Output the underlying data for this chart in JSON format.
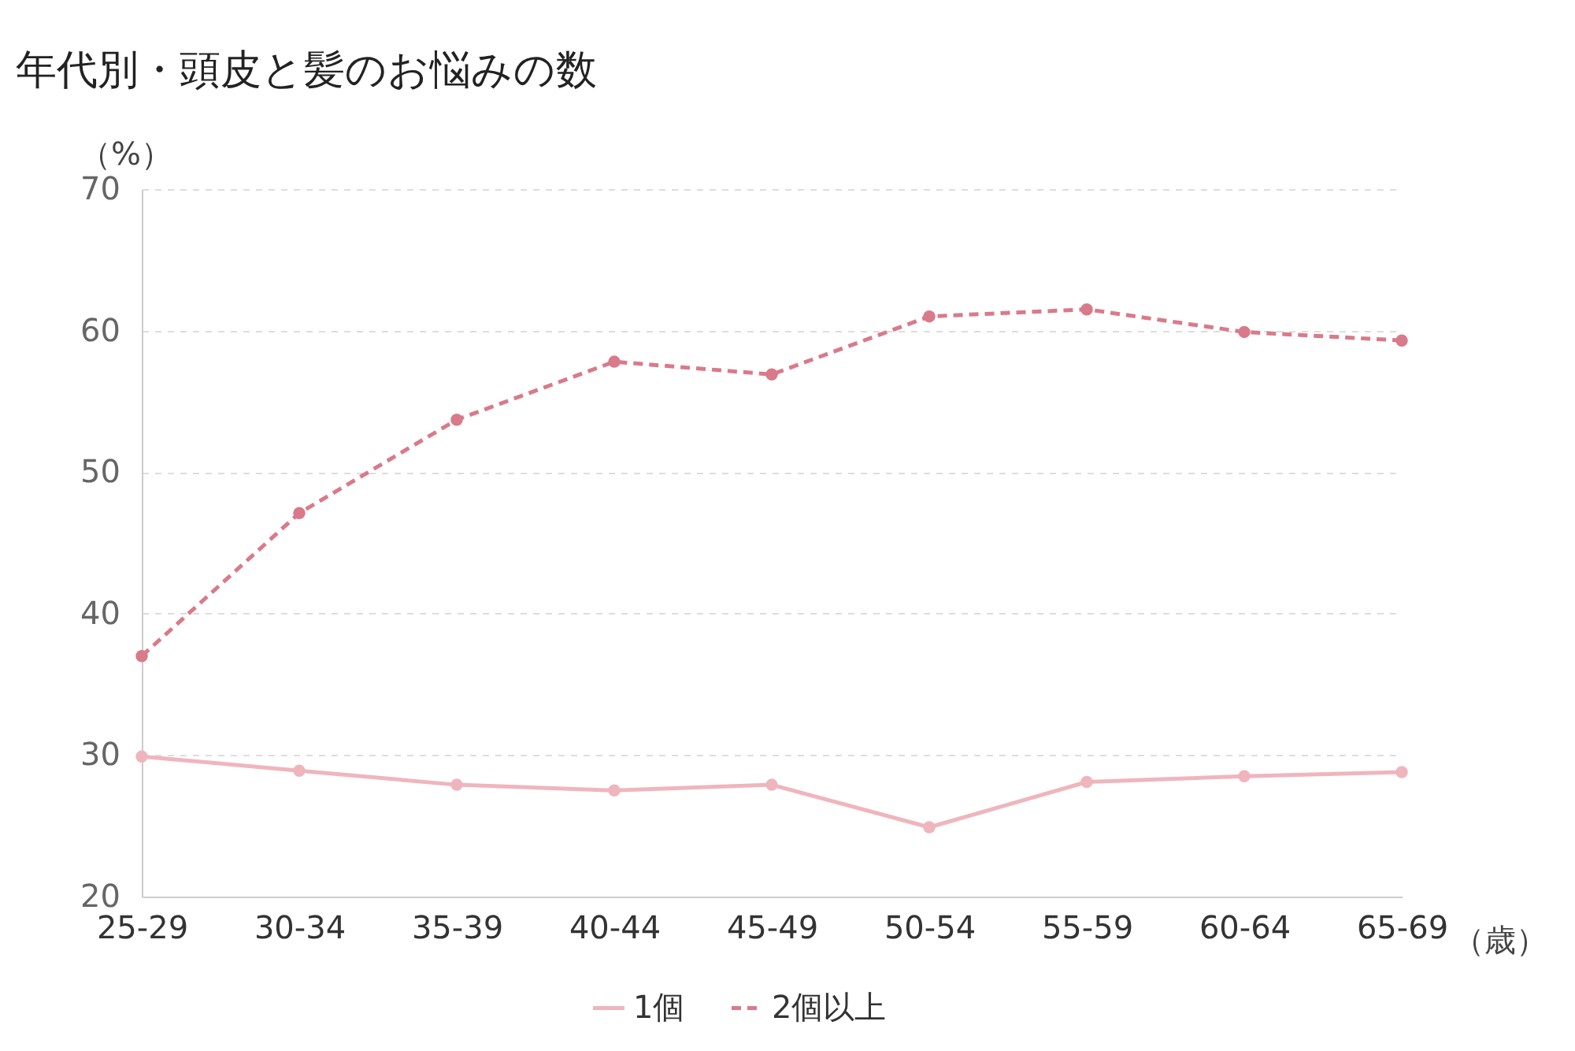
{
  "chart_data": {
    "type": "line",
    "title": "年代別・頭皮と髪のお悩みの数",
    "xlabel": "（歳）",
    "ylabel": "（%）",
    "categories": [
      "25-29",
      "30-34",
      "35-39",
      "40-44",
      "45-49",
      "50-54",
      "55-59",
      "60-64",
      "65-69"
    ],
    "series": [
      {
        "name": "1個",
        "color": "#efb5bd",
        "line_style": "solid",
        "values": [
          29.9,
          28.9,
          27.9,
          27.5,
          27.9,
          24.9,
          28.1,
          28.5,
          28.8
        ]
      },
      {
        "name": "2個以上",
        "color": "#d97a8a",
        "line_style": "dashed",
        "values": [
          37.0,
          47.1,
          53.7,
          57.8,
          56.9,
          61.0,
          61.5,
          59.9,
          59.3
        ]
      }
    ],
    "ylim": [
      20,
      70
    ],
    "yticks": [
      20,
      30,
      40,
      50,
      60,
      70
    ],
    "grid": "y",
    "legend": "bottom",
    "marker": "circle"
  }
}
